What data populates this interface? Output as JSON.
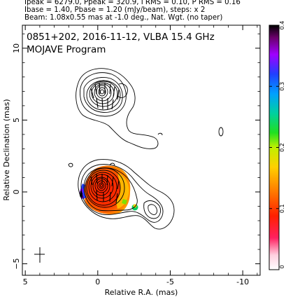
{
  "header": {
    "lines": [
      "Ipeak = 6279.0, Ppeak = 320.9, I RMS = 0.10, P RMS = 0.16",
      "Ibase = 1.40, Pbase = 1.20 (mJy/beam), steps: x 2",
      "Beam: 1.08x0.55 mas at -1.0 deg., Nat. Wgt. (no taper)"
    ]
  },
  "chart_data": {
    "type": "heatmap",
    "title_lines": [
      "0851+202, 2016-11-12, VLBA 15.4 GHz",
      "MOJAVE Program"
    ],
    "xlabel": "Relative R.A. (mas)",
    "ylabel": "Relative Declination (mas)",
    "xlim": [
      5.2,
      -11.2
    ],
    "ylim": [
      -5.8,
      11.6
    ],
    "x_ticks": [
      5,
      0,
      -5,
      -10
    ],
    "x_tick_labels": [
      "5",
      "0",
      "-5",
      "-10"
    ],
    "y_ticks": [
      -5,
      0,
      5,
      10
    ],
    "y_tick_labels": [
      "−5",
      "0",
      "5",
      "10"
    ],
    "colorbar": {
      "min": 0,
      "max": 0.4,
      "ticks": [
        0,
        0.1,
        0.2,
        0.3,
        0.4
      ],
      "tick_labels": [
        "0",
        "0.1",
        "0.2",
        "0.3",
        "0.4"
      ]
    },
    "features": {
      "core_ra_dec": [
        0,
        0
      ],
      "beam_marker_ra_dec": [
        4,
        -4.5
      ],
      "polarized_peak_fraction": 0.4
    },
    "contour_levels_mjy": [
      1.4,
      2.8,
      5.6,
      11.2,
      22.4,
      44.8,
      89.6,
      179.2,
      358.4,
      716.8,
      1433.6,
      2867.2,
      5734.4
    ]
  }
}
